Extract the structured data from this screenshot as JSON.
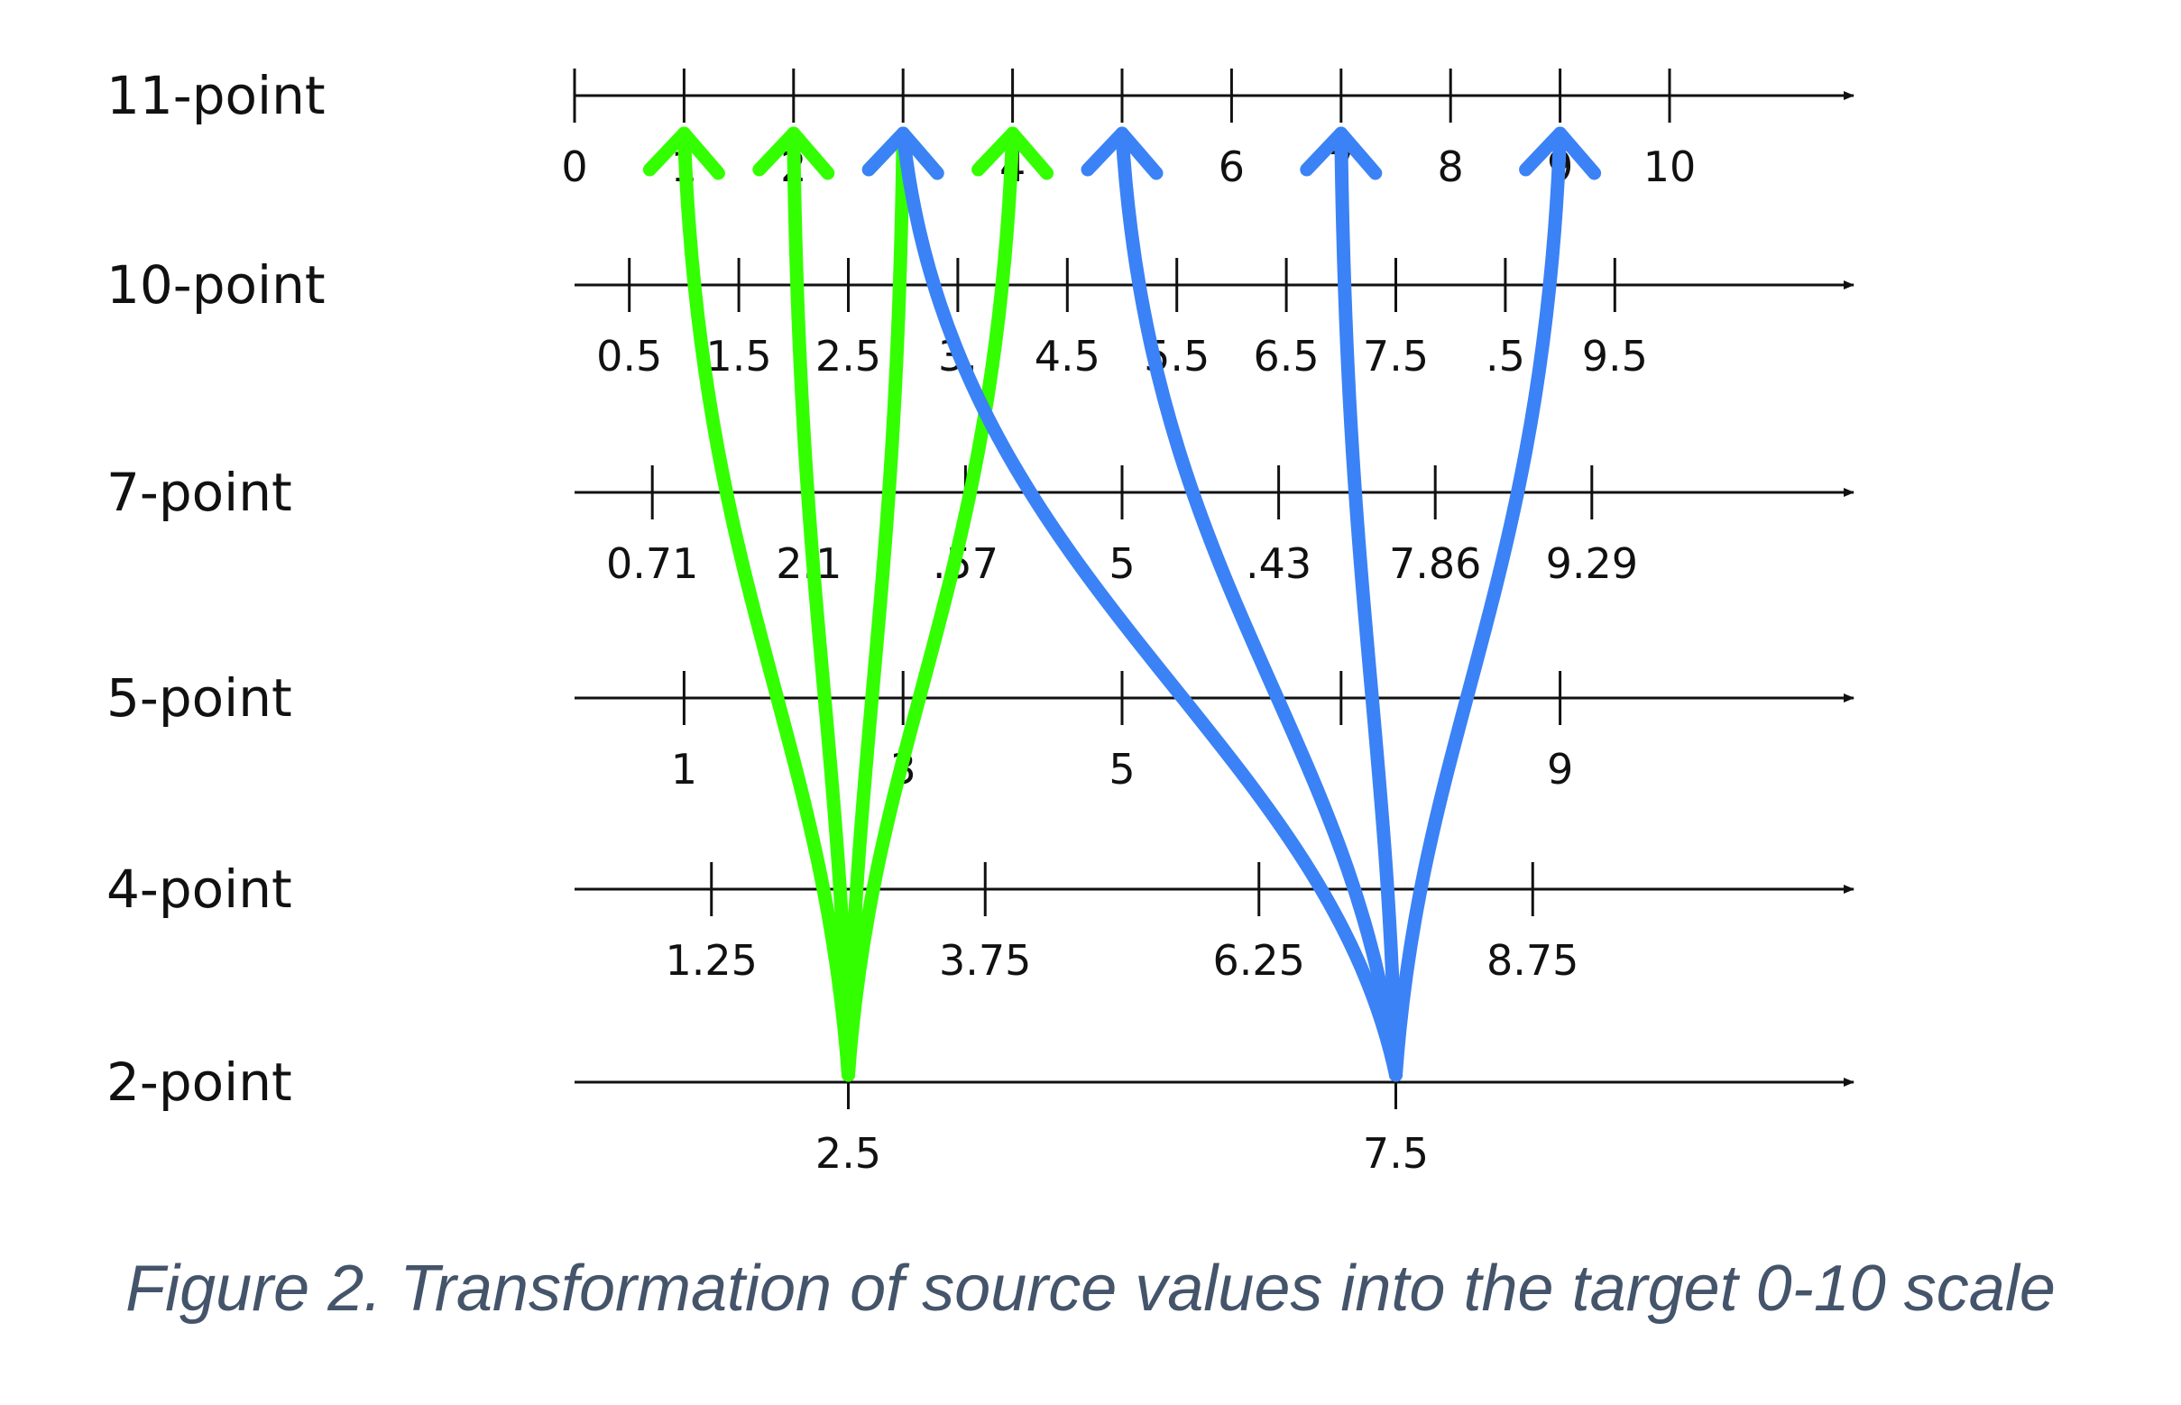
{
  "caption": "Figure 2. Transformation of source values into the target 0-10 scale",
  "colors": {
    "axis": "#111111",
    "green_arrows": "#33ff00",
    "blue_arrows": "#3b82f6",
    "caption": "#44546a"
  },
  "scales": [
    {
      "name": "11-point",
      "ticks": [
        0,
        1,
        2,
        3,
        4,
        5,
        6,
        7,
        8,
        9,
        10
      ],
      "labels": [
        "0",
        "1",
        "2",
        "",
        "4",
        "",
        "6",
        "7",
        "8",
        "9",
        "10"
      ]
    },
    {
      "name": "10-point",
      "ticks": [
        0.5,
        1.5,
        2.5,
        3.5,
        4.5,
        5.5,
        6.5,
        7.5,
        8.5,
        9.5
      ],
      "labels": [
        "0.5",
        "1.5",
        "2.5",
        "3.",
        "4.5",
        "5.5",
        "6.5",
        "7.5",
        ".5",
        "9.5"
      ]
    },
    {
      "name": "7-point",
      "ticks": [
        0.71,
        2.14,
        3.57,
        5,
        6.43,
        7.86,
        9.29
      ],
      "labels": [
        "0.71",
        "2.1",
        ".57",
        "5",
        ".43",
        "7.86",
        "9.29"
      ]
    },
    {
      "name": "5-point",
      "ticks": [
        1,
        3,
        5,
        7,
        9
      ],
      "labels": [
        "1",
        "3",
        "5",
        "",
        "9"
      ]
    },
    {
      "name": "4-point",
      "ticks": [
        1.25,
        3.75,
        6.25,
        8.75
      ],
      "labels": [
        "1.25",
        "3.75",
        "6.25",
        "8.75"
      ]
    },
    {
      "name": "2-point",
      "ticks": [
        2.5,
        7.5
      ],
      "labels": [
        "2.5",
        "7.5"
      ]
    }
  ],
  "arrow_groups": [
    {
      "source": 2.5,
      "color": "green",
      "targets": [
        1,
        2,
        3,
        4
      ]
    },
    {
      "source": 7.5,
      "color": "blue",
      "targets": [
        3,
        5,
        7,
        9
      ]
    }
  ]
}
